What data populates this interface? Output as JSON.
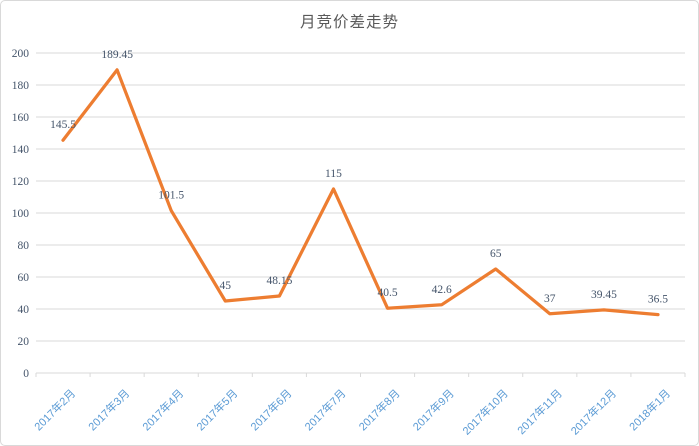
{
  "chart": {
    "title": "月竞价差走势"
  },
  "chart_data": {
    "type": "line",
    "title": "月竞价差走势",
    "categories": [
      "2017年2月",
      "2017年3月",
      "2017年4月",
      "2017年5月",
      "2017年6月",
      "2017年7月",
      "2017年8月",
      "2017年9月",
      "2017年10月",
      "2017年11月",
      "2017年12月",
      "2018年1月"
    ],
    "values": [
      145.5,
      189.45,
      101.5,
      45,
      48.15,
      115,
      40.5,
      42.6,
      65,
      37,
      39.45,
      36.5
    ],
    "data_labels": [
      "145.5",
      "189.45",
      "101.5",
      "45",
      "48.15",
      "115",
      "40.5",
      "42.6",
      "65",
      "37",
      "39.45",
      "36.5"
    ],
    "xlabel": "",
    "ylabel": "",
    "ylim": [
      0,
      200
    ],
    "ytick_step": 20,
    "ytick_labels": [
      "0",
      "20",
      "40",
      "60",
      "80",
      "100",
      "120",
      "140",
      "160",
      "180",
      "200"
    ],
    "grid": true,
    "legend": "none",
    "colors": {
      "line": "#ED7D31",
      "data_label": "#44546A",
      "y_tick_label": "#44546A",
      "x_tick_label": "#5B9BD5",
      "gridline": "#D9D9D9",
      "axis": "#D9D9D9",
      "title": "#595959"
    }
  }
}
